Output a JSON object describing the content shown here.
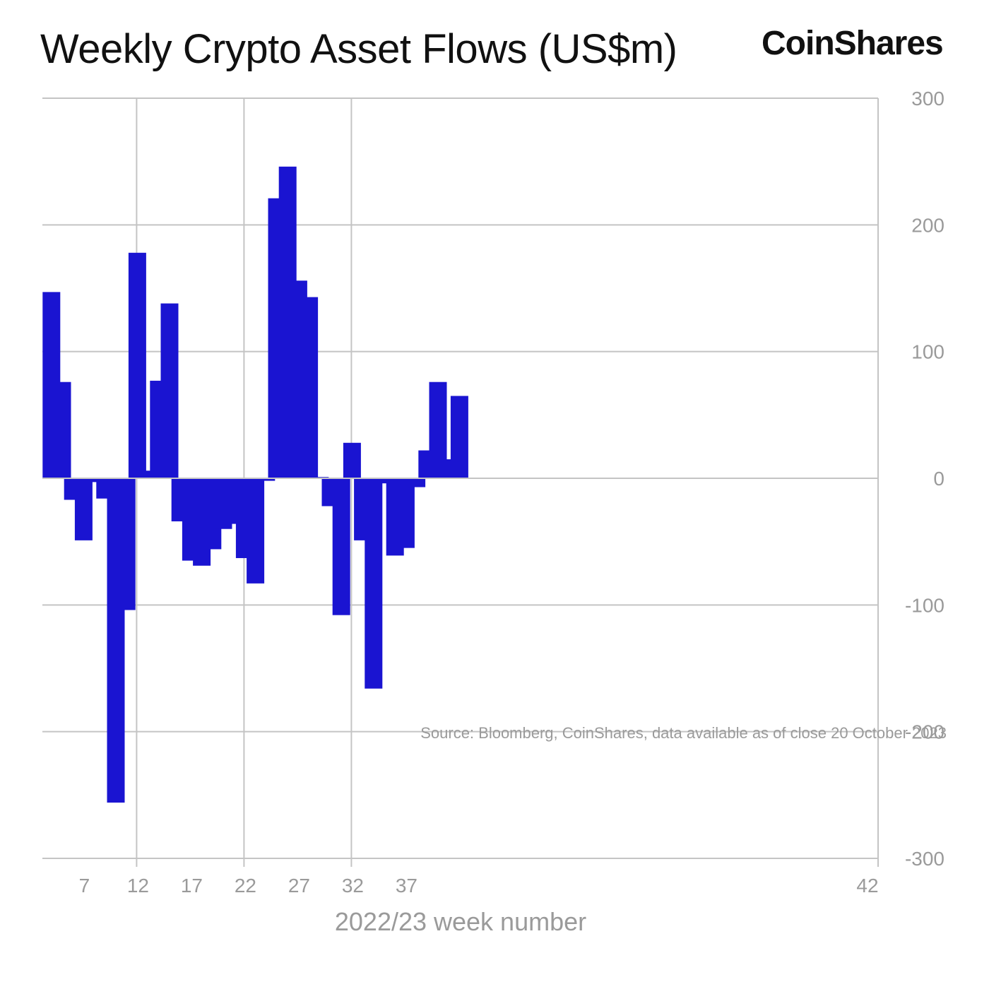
{
  "header": {
    "title": "Weekly Crypto Asset Flows (US$m)",
    "brand": "CoinShares"
  },
  "footer": {
    "source": "Source: Bloomberg, CoinShares, data available as of close 20 October 2023"
  },
  "colors": {
    "bar": "#1a14d1",
    "grid": "#c4c4c4",
    "tick_text": "#9a9a9a"
  },
  "chart_data": {
    "type": "bar",
    "title": "Weekly Crypto Asset Flows (US$m)",
    "xlabel": "2022/23 week number",
    "ylabel": "",
    "y_axis_position": "right",
    "ylim": [
      -300,
      300
    ],
    "y_ticks": [
      300,
      200,
      100,
      0,
      -100,
      -200,
      -300
    ],
    "y_tick_labels": [
      "300",
      "200",
      "100",
      "0",
      "-100",
      "-200",
      "-300"
    ],
    "x_ticks": [
      7,
      12,
      17,
      22,
      27,
      32,
      37,
      42
    ],
    "x_tick_labels": [
      "7",
      "12",
      "17",
      "22",
      "27",
      "32",
      "37",
      "42"
    ],
    "grid": true,
    "series": [
      {
        "x": [
          4,
          5,
          6,
          7,
          8,
          9,
          10,
          11,
          12,
          13,
          14,
          15,
          16,
          17,
          18,
          19,
          20,
          21,
          22,
          23,
          24,
          25,
          26,
          27,
          28,
          29,
          30,
          31,
          32,
          33,
          34,
          35,
          36,
          37,
          38,
          39,
          40,
          41,
          42
        ],
        "values": [
          147,
          76,
          -17,
          -49,
          -3,
          -16,
          -256,
          -104,
          178,
          6,
          77,
          138,
          -34,
          -65,
          -69,
          -56,
          -40,
          -36,
          -63,
          -83,
          -2,
          221,
          246,
          156,
          143,
          1,
          -22,
          -108,
          28,
          -49,
          -166,
          -4,
          -61,
          -55,
          -7,
          22,
          76,
          15,
          65
        ]
      }
    ]
  }
}
